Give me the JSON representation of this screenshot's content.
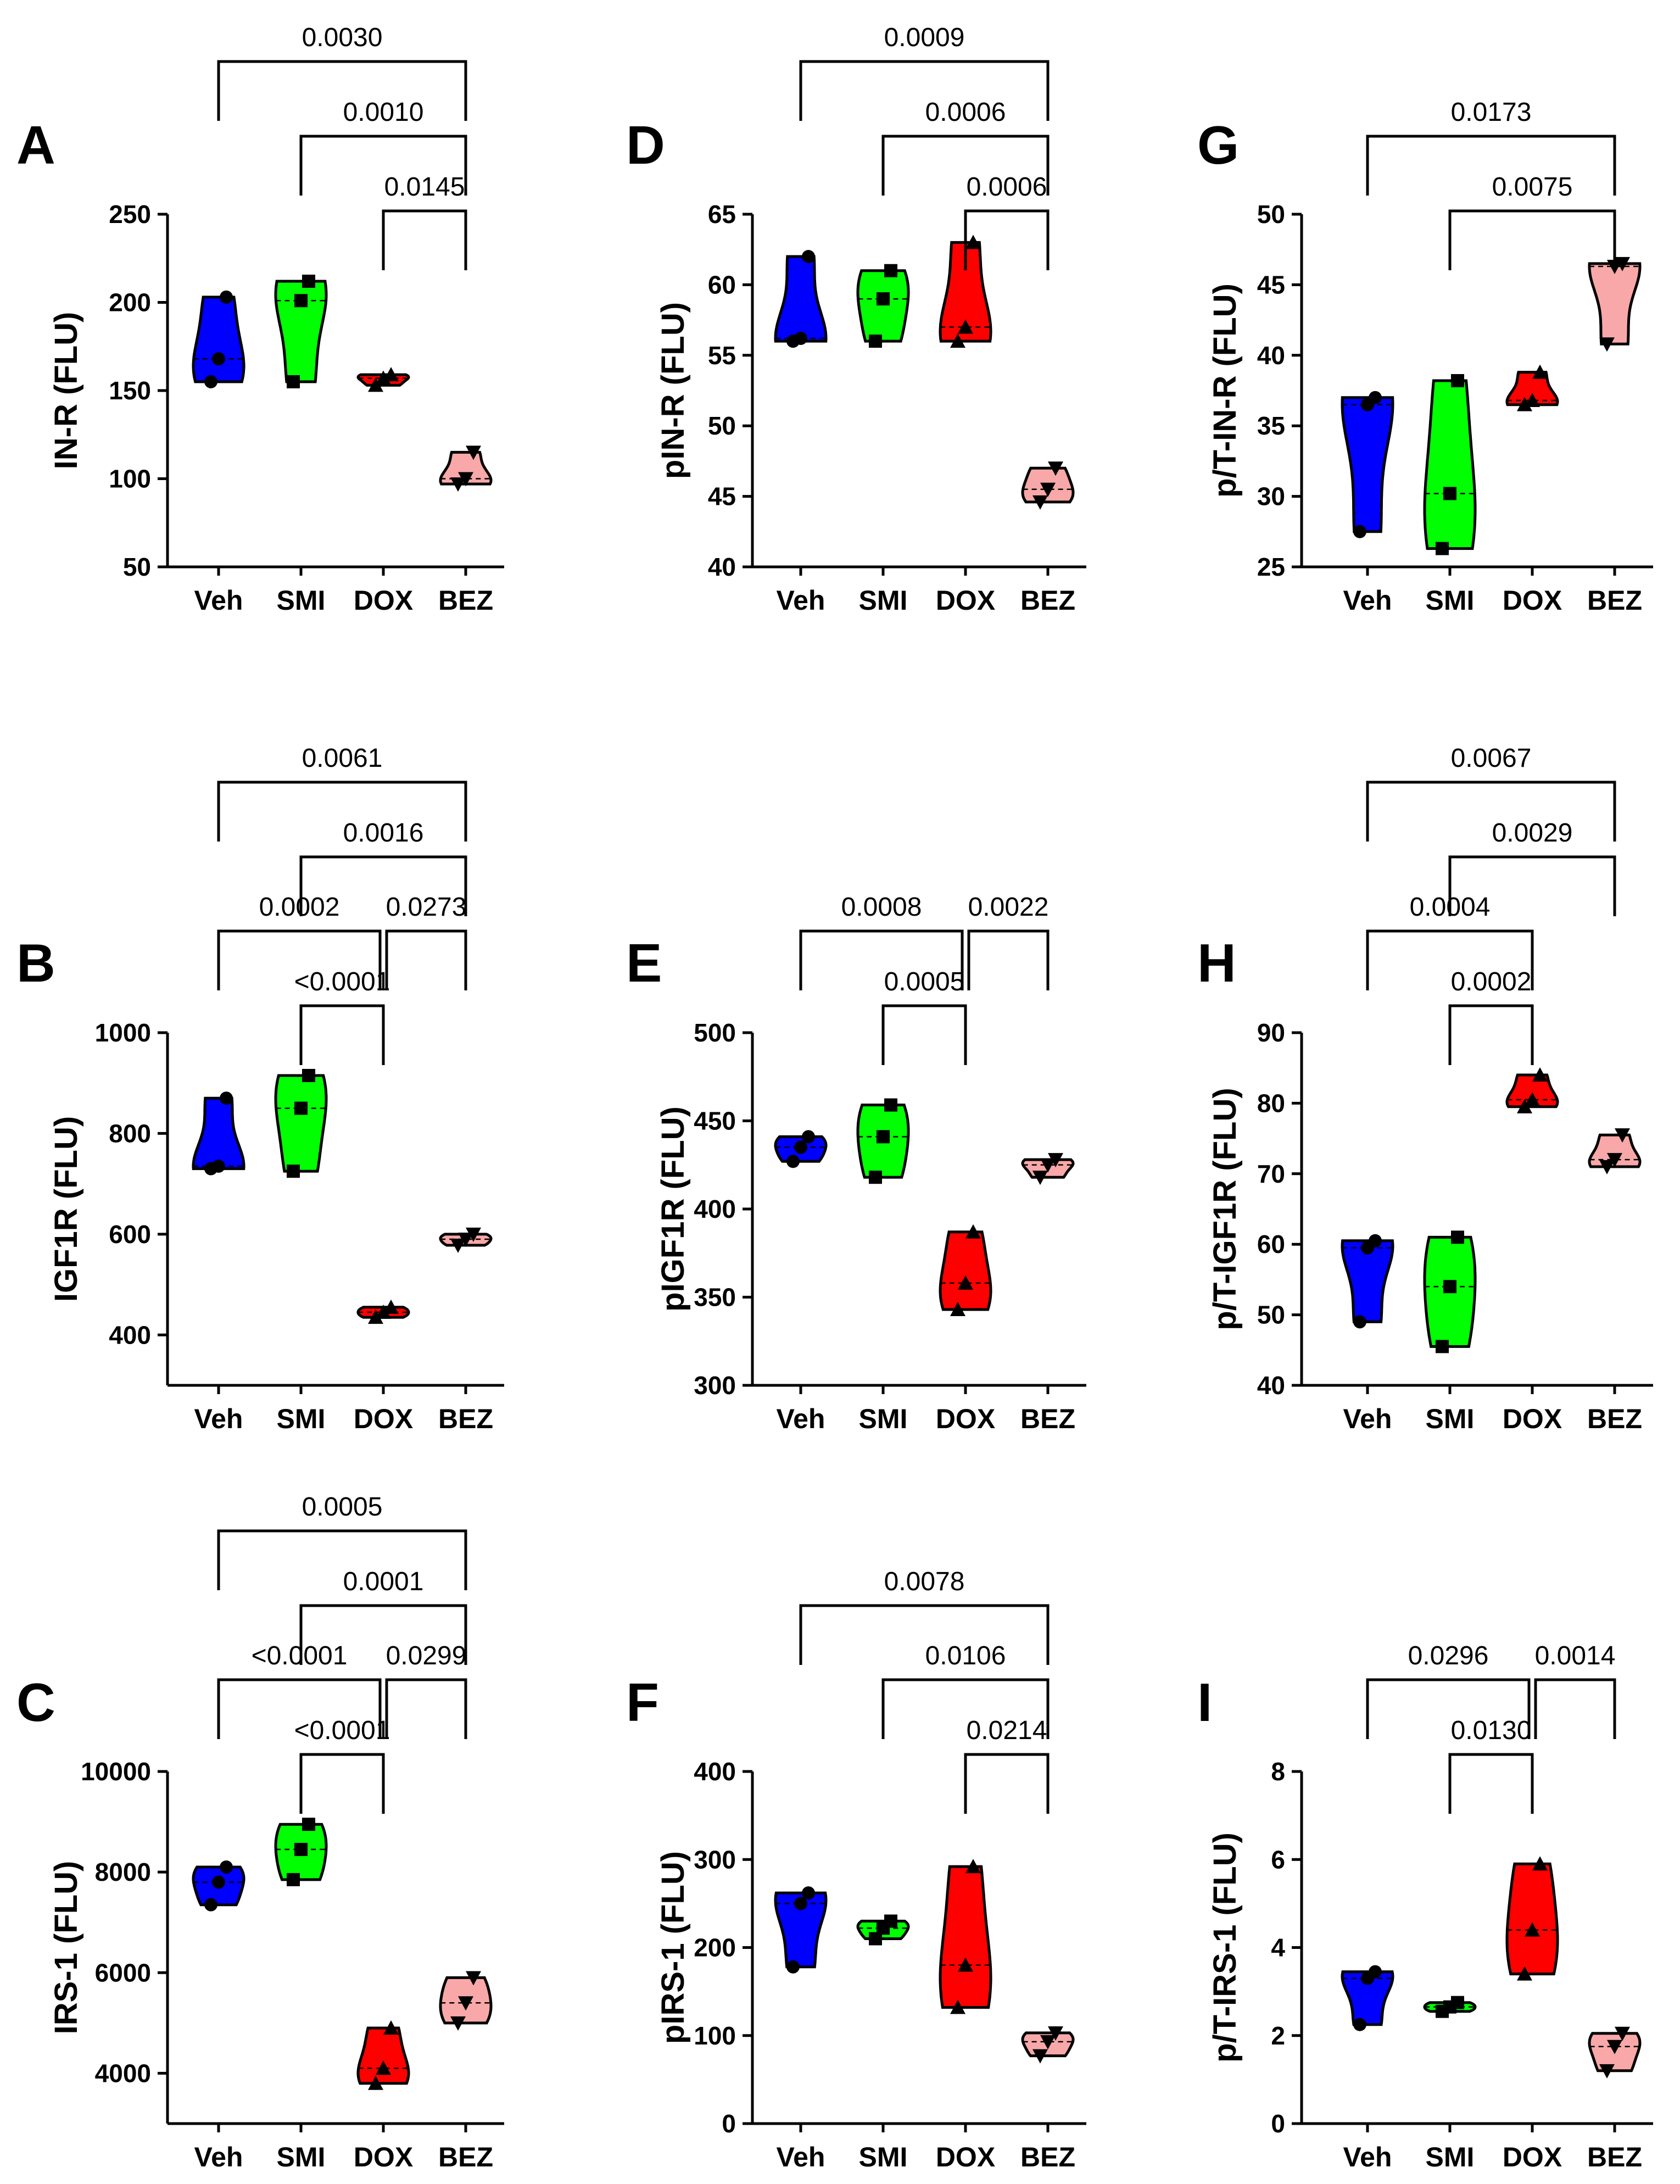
{
  "colors": {
    "Veh": "#0000ff",
    "SMI": "#00ff00",
    "DOX": "#ff0000",
    "BEZ": "#f8a8a8"
  },
  "chart_data": [
    {
      "panel": "A",
      "type": "violin",
      "ylabel": "IN-R (FLU)",
      "ylim": [
        50,
        250
      ],
      "yticks": [
        50,
        100,
        150,
        200,
        250
      ],
      "categories": [
        "Veh",
        "SMI",
        "DOX",
        "BEZ"
      ],
      "markers": {
        "Veh": "circle",
        "SMI": "square",
        "DOX": "triangle-up",
        "BEZ": "triangle-down"
      },
      "series": [
        {
          "name": "Veh",
          "values": [
            155,
            168,
            203
          ]
        },
        {
          "name": "SMI",
          "values": [
            155,
            201,
            212
          ]
        },
        {
          "name": "DOX",
          "values": [
            153,
            157,
            159
          ]
        },
        {
          "name": "BEZ",
          "values": [
            97,
            100,
            115
          ]
        }
      ],
      "comparisons": [
        {
          "from": "Veh",
          "to": "BEZ",
          "label": "0.0030"
        },
        {
          "from": "SMI",
          "to": "BEZ",
          "label": "0.0010"
        },
        {
          "from": "DOX",
          "to": "BEZ",
          "label": "0.0145"
        }
      ]
    },
    {
      "panel": "B",
      "type": "violin",
      "ylabel": "IGF1R (FLU)",
      "ylim": [
        300,
        1000
      ],
      "yticks": [
        400,
        600,
        800,
        1000
      ],
      "categories": [
        "Veh",
        "SMI",
        "DOX",
        "BEZ"
      ],
      "markers": {
        "Veh": "circle",
        "SMI": "square",
        "DOX": "triangle-up",
        "BEZ": "triangle-down"
      },
      "series": [
        {
          "name": "Veh",
          "values": [
            730,
            735,
            870
          ]
        },
        {
          "name": "SMI",
          "values": [
            725,
            850,
            915
          ]
        },
        {
          "name": "DOX",
          "values": [
            435,
            445,
            455
          ]
        },
        {
          "name": "BEZ",
          "values": [
            578,
            590,
            600
          ]
        }
      ],
      "comparisons": [
        {
          "from": "Veh",
          "to": "BEZ",
          "label": "0.0061"
        },
        {
          "from": "SMI",
          "to": "BEZ",
          "label": "0.0016"
        },
        {
          "from": "Veh",
          "to": "DOX",
          "label": "0.0002"
        },
        {
          "from": "DOX",
          "to": "BEZ",
          "label": "0.0273"
        },
        {
          "from": "SMI",
          "to": "DOX",
          "label": "<0.0001"
        }
      ]
    },
    {
      "panel": "C",
      "type": "violin",
      "ylabel": "IRS-1 (FLU)",
      "ylim": [
        3000,
        10000
      ],
      "yticks": [
        4000,
        6000,
        8000,
        10000
      ],
      "categories": [
        "Veh",
        "SMI",
        "DOX",
        "BEZ"
      ],
      "markers": {
        "Veh": "circle",
        "SMI": "square",
        "DOX": "triangle-up",
        "BEZ": "triangle-down"
      },
      "series": [
        {
          "name": "Veh",
          "values": [
            7350,
            7800,
            8100
          ]
        },
        {
          "name": "SMI",
          "values": [
            7850,
            8450,
            8950
          ]
        },
        {
          "name": "DOX",
          "values": [
            3800,
            4100,
            4900
          ]
        },
        {
          "name": "BEZ",
          "values": [
            5000,
            5400,
            5900
          ]
        }
      ],
      "comparisons": [
        {
          "from": "Veh",
          "to": "BEZ",
          "label": "0.0005"
        },
        {
          "from": "SMI",
          "to": "BEZ",
          "label": "0.0001"
        },
        {
          "from": "Veh",
          "to": "DOX",
          "label": "<0.0001"
        },
        {
          "from": "DOX",
          "to": "BEZ",
          "label": "0.0299"
        },
        {
          "from": "SMI",
          "to": "DOX",
          "label": "<0.0001"
        }
      ]
    },
    {
      "panel": "D",
      "type": "violin",
      "ylabel": "pIN-R (FLU)",
      "ylim": [
        40,
        65
      ],
      "yticks": [
        40,
        45,
        50,
        55,
        60,
        65
      ],
      "categories": [
        "Veh",
        "SMI",
        "DOX",
        "BEZ"
      ],
      "markers": {
        "Veh": "circle",
        "SMI": "square",
        "DOX": "triangle-up",
        "BEZ": "triangle-down"
      },
      "series": [
        {
          "name": "Veh",
          "values": [
            56,
            56.2,
            62
          ]
        },
        {
          "name": "SMI",
          "values": [
            56,
            59,
            61
          ]
        },
        {
          "name": "DOX",
          "values": [
            56,
            57,
            63
          ]
        },
        {
          "name": "BEZ",
          "values": [
            44.6,
            45.5,
            47
          ]
        }
      ],
      "comparisons": [
        {
          "from": "Veh",
          "to": "BEZ",
          "label": "0.0009"
        },
        {
          "from": "SMI",
          "to": "BEZ",
          "label": "0.0006"
        },
        {
          "from": "DOX",
          "to": "BEZ",
          "label": "0.0006"
        }
      ]
    },
    {
      "panel": "E",
      "type": "violin",
      "ylabel": "pIGF1R (FLU)",
      "ylim": [
        300,
        500
      ],
      "yticks": [
        300,
        350,
        400,
        450,
        500
      ],
      "categories": [
        "Veh",
        "SMI",
        "DOX",
        "BEZ"
      ],
      "markers": {
        "Veh": "circle",
        "SMI": "square",
        "DOX": "triangle-up",
        "BEZ": "triangle-down"
      },
      "series": [
        {
          "name": "Veh",
          "values": [
            427,
            435,
            441
          ]
        },
        {
          "name": "SMI",
          "values": [
            418,
            441,
            459
          ]
        },
        {
          "name": "DOX",
          "values": [
            343,
            358,
            387
          ]
        },
        {
          "name": "BEZ",
          "values": [
            418,
            425,
            428
          ]
        }
      ],
      "comparisons": [
        {
          "from": "Veh",
          "to": "DOX",
          "label": "0.0008"
        },
        {
          "from": "DOX",
          "to": "BEZ",
          "label": "0.0022"
        },
        {
          "from": "SMI",
          "to": "DOX",
          "label": "0.0005"
        }
      ]
    },
    {
      "panel": "F",
      "type": "violin",
      "ylabel": "pIRS-1 (FLU)",
      "ylim": [
        0,
        400
      ],
      "yticks": [
        0,
        100,
        200,
        300,
        400
      ],
      "categories": [
        "Veh",
        "SMI",
        "DOX",
        "BEZ"
      ],
      "markers": {
        "Veh": "circle",
        "SMI": "square",
        "DOX": "triangle-up",
        "BEZ": "triangle-down"
      },
      "series": [
        {
          "name": "Veh",
          "values": [
            178,
            250,
            262
          ]
        },
        {
          "name": "SMI",
          "values": [
            210,
            222,
            230
          ]
        },
        {
          "name": "DOX",
          "values": [
            132,
            180,
            292
          ]
        },
        {
          "name": "BEZ",
          "values": [
            77,
            93,
            103
          ]
        }
      ],
      "comparisons": [
        {
          "from": "Veh",
          "to": "BEZ",
          "label": "0.0078"
        },
        {
          "from": "SMI",
          "to": "BEZ",
          "label": "0.0106"
        },
        {
          "from": "DOX",
          "to": "BEZ",
          "label": "0.0214"
        }
      ]
    },
    {
      "panel": "G",
      "type": "violin",
      "ylabel": "p/T-IN-R (FLU)",
      "ylim": [
        25,
        50
      ],
      "yticks": [
        25,
        30,
        35,
        40,
        45,
        50
      ],
      "categories": [
        "Veh",
        "SMI",
        "DOX",
        "BEZ"
      ],
      "markers": {
        "Veh": "circle",
        "SMI": "square",
        "DOX": "triangle-up",
        "BEZ": "triangle-down"
      },
      "series": [
        {
          "name": "Veh",
          "values": [
            27.5,
            36.5,
            37
          ]
        },
        {
          "name": "SMI",
          "values": [
            26.3,
            30.2,
            38.2
          ]
        },
        {
          "name": "DOX",
          "values": [
            36.5,
            36.8,
            38.8
          ]
        },
        {
          "name": "BEZ",
          "values": [
            40.8,
            46.3,
            46.5
          ]
        }
      ],
      "comparisons": [
        {
          "from": "Veh",
          "to": "BEZ",
          "label": "0.0173"
        },
        {
          "from": "SMI",
          "to": "BEZ",
          "label": "0.0075"
        }
      ]
    },
    {
      "panel": "H",
      "type": "violin",
      "ylabel": "p/T-IGF1R (FLU)",
      "ylim": [
        40,
        90
      ],
      "yticks": [
        40,
        50,
        60,
        70,
        80,
        90
      ],
      "categories": [
        "Veh",
        "SMI",
        "DOX",
        "BEZ"
      ],
      "markers": {
        "Veh": "circle",
        "SMI": "square",
        "DOX": "triangle-up",
        "BEZ": "triangle-down"
      },
      "series": [
        {
          "name": "Veh",
          "values": [
            49,
            59.5,
            60.5
          ]
        },
        {
          "name": "SMI",
          "values": [
            45.5,
            54,
            61
          ]
        },
        {
          "name": "DOX",
          "values": [
            79.5,
            80.5,
            84
          ]
        },
        {
          "name": "BEZ",
          "values": [
            71,
            72,
            75.5
          ]
        }
      ],
      "comparisons": [
        {
          "from": "Veh",
          "to": "BEZ",
          "label": "0.0067"
        },
        {
          "from": "SMI",
          "to": "BEZ",
          "label": "0.0029"
        },
        {
          "from": "Veh",
          "to": "DOX",
          "label": "0.0004"
        },
        {
          "from": "SMI",
          "to": "DOX",
          "label": "0.0002"
        }
      ]
    },
    {
      "panel": "I",
      "type": "violin",
      "ylabel": "p/T-IRS-1 (FLU)",
      "ylim": [
        0,
        8
      ],
      "yticks": [
        0,
        2,
        4,
        6,
        8
      ],
      "categories": [
        "Veh",
        "SMI",
        "DOX",
        "BEZ"
      ],
      "markers": {
        "Veh": "circle",
        "SMI": "square",
        "DOX": "triangle-up",
        "BEZ": "triangle-down"
      },
      "series": [
        {
          "name": "Veh",
          "values": [
            2.25,
            3.3,
            3.45
          ]
        },
        {
          "name": "SMI",
          "values": [
            2.55,
            2.65,
            2.75
          ]
        },
        {
          "name": "DOX",
          "values": [
            3.4,
            4.4,
            5.9
          ]
        },
        {
          "name": "BEZ",
          "values": [
            1.2,
            1.75,
            2.05
          ]
        }
      ],
      "comparisons": [
        {
          "from": "Veh",
          "to": "DOX",
          "label": "0.0296"
        },
        {
          "from": "DOX",
          "to": "BEZ",
          "label": "0.0014"
        },
        {
          "from": "SMI",
          "to": "DOX",
          "label": "0.0130"
        }
      ]
    }
  ]
}
